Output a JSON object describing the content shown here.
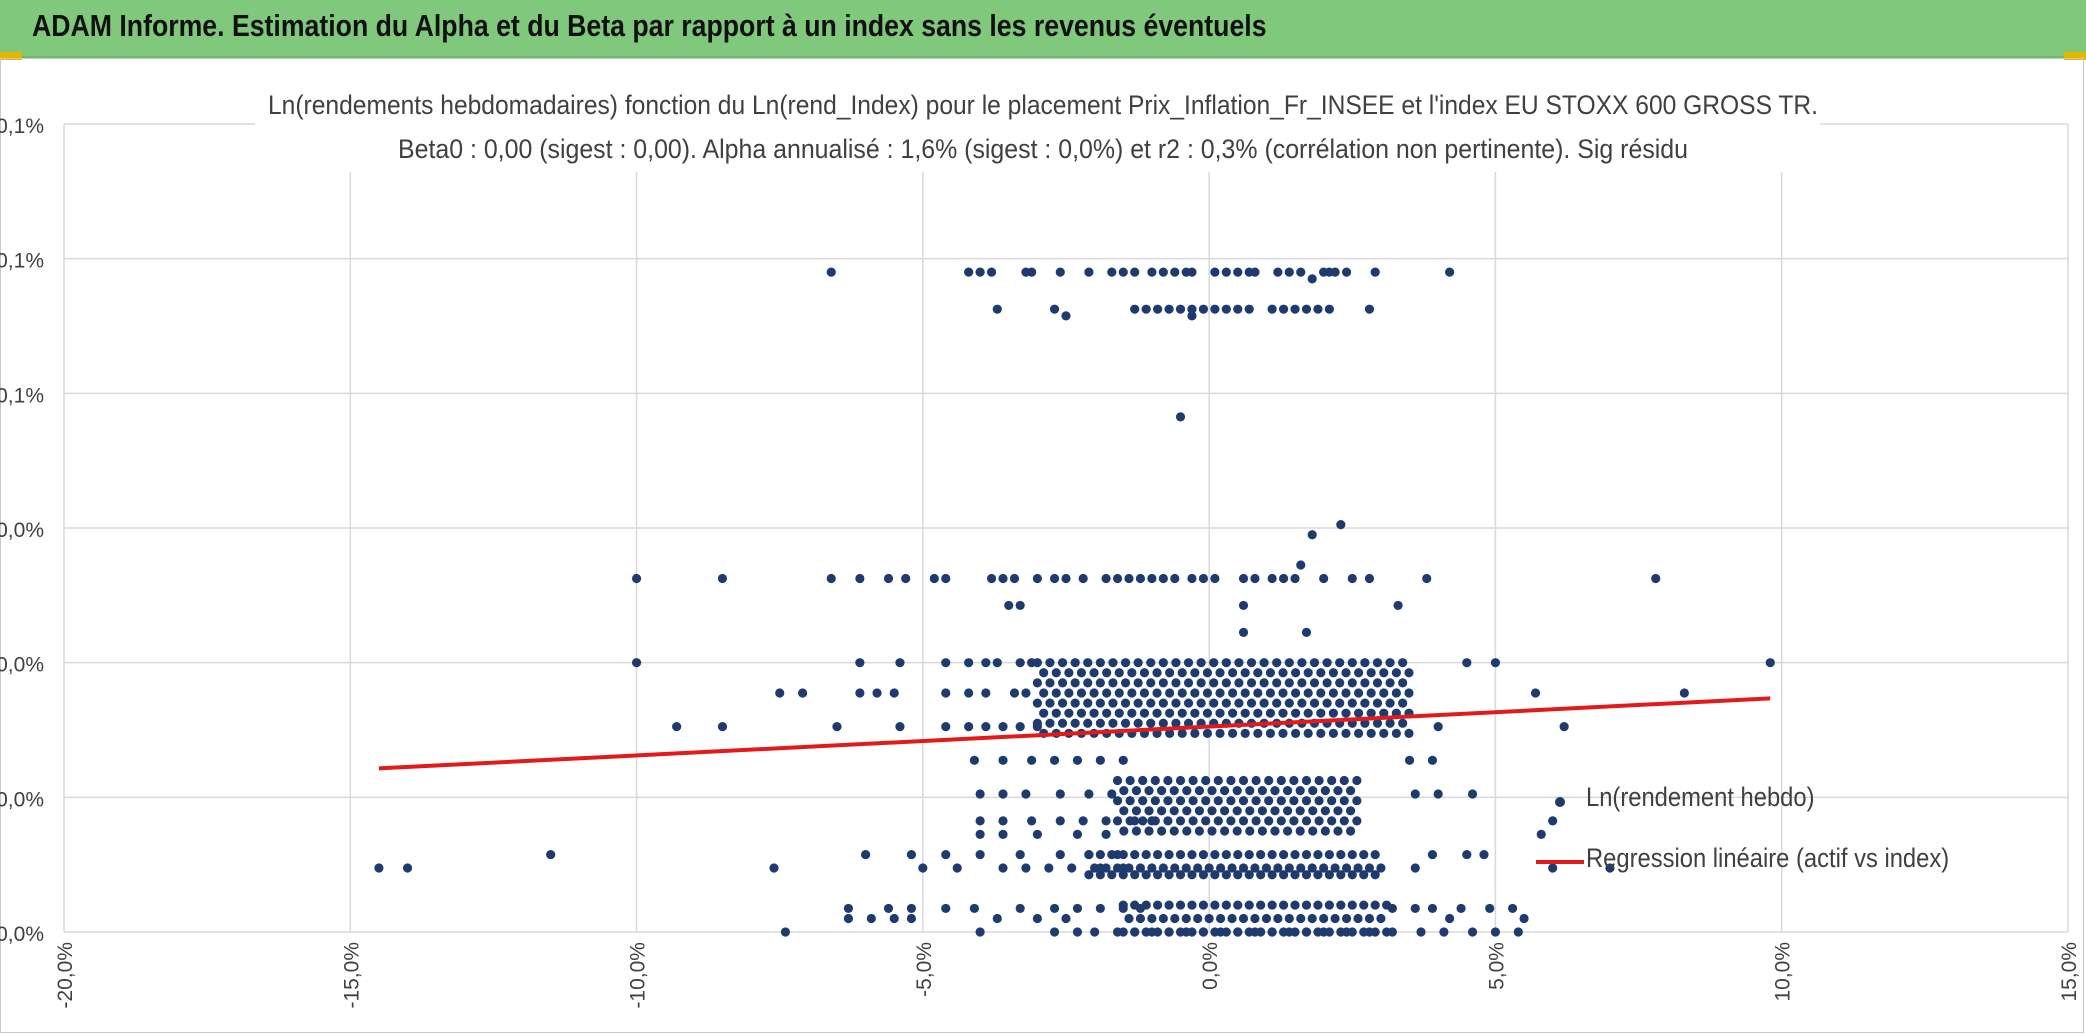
{
  "header": {
    "title": "ADAM Informe. Estimation du Alpha et du Beta par rapport à un index sans les revenus éventuels"
  },
  "colors": {
    "banner": "#80c97c",
    "points": "#1f3b6e",
    "regression": "#e31a1c",
    "grid": "#d9d9d9",
    "text": "#404040"
  },
  "chart_data": {
    "type": "scatter",
    "title_lines": [
      "Ln(rendements hebdomadaires) fonction du Ln(rend_Index) pour le placement Prix_Inflation_Fr_INSEE et l'index EU STOXX 600 GROSS TR.",
      "Beta0 : 0,00 (sigest : 0,00). Alpha annualisé : 1,6% (sigest : 0,0%) et r2 : 0,3% (corrélation non pertinente). Sig résidu"
    ],
    "xlabel": "Ln(rend_Index)",
    "ylabel": "Ln(rendement hebdo)",
    "xlim": [
      -20.0,
      15.0
    ],
    "ylim": [
      0.0,
      0.12
    ],
    "x_ticks": [
      -20,
      -15,
      -10,
      -5,
      0,
      5,
      10,
      15
    ],
    "x_tick_labels": [
      "-20,0%",
      "-15,0%",
      "-10,0%",
      "-5,0%",
      "0,0%",
      "5,0%",
      "10,0%",
      "15,0%"
    ],
    "y_ticks": [
      0.0,
      0.02,
      0.04,
      0.06,
      0.08,
      0.1,
      0.12
    ],
    "y_tick_labels": [
      "0,0%",
      "0,0%",
      "0,0%",
      "0,0%",
      "0,1%",
      "0,1%",
      "0,1%"
    ],
    "grid": true,
    "legend": {
      "position": "right",
      "entries": [
        "Ln(rendement hebdo)",
        "Regression linéaire (actif vs index)"
      ]
    },
    "regression": {
      "x": [
        -14.5,
        9.8
      ],
      "y": [
        0.0243,
        0.0347
      ]
    },
    "series": [
      {
        "name": "Ln(rendement hebdo)",
        "bands": [
          {
            "y": 0.118,
            "x": [
              0.3
            ]
          },
          {
            "y": 0.098,
            "x": [
              -6.6,
              -4.2,
              -4.0,
              -3.8,
              -3.2,
              -3.1,
              -2.6,
              -2.1,
              -1.7,
              -1.5,
              -1.3,
              -1.0,
              -0.8,
              -0.6,
              -0.4,
              -0.3,
              0.1,
              0.3,
              0.5,
              0.7,
              0.8,
              1.2,
              1.4,
              1.6,
              2.0,
              2.1,
              2.2,
              2.4,
              2.9,
              4.2
            ]
          },
          {
            "y": 0.0925,
            "x": [
              -3.7,
              -2.7,
              -1.3,
              -1.1,
              -0.9,
              -0.7,
              -0.5,
              -0.3,
              -0.1,
              0.1,
              0.3,
              0.5,
              0.7,
              1.1,
              1.3,
              1.5,
              1.7,
              1.9,
              2.1,
              2.8
            ]
          },
          {
            "y": 0.097,
            "x": [
              1.8
            ]
          },
          {
            "y": 0.0915,
            "x": [
              -2.5
            ]
          },
          {
            "y": 0.0915,
            "x": [
              -0.3
            ]
          },
          {
            "y": 0.0765,
            "x": [
              -0.5
            ]
          },
          {
            "y": 0.0605,
            "x": [
              2.3
            ]
          },
          {
            "y": 0.059,
            "x": [
              1.8
            ]
          },
          {
            "y": 0.0545,
            "x": [
              1.6
            ]
          },
          {
            "y": 0.0525,
            "x": [
              -10.0,
              -8.5,
              -6.6,
              -6.1,
              -5.6,
              -5.3,
              -4.8,
              -4.6,
              -3.8,
              -3.6,
              -3.4,
              -3.0,
              -2.7,
              -2.5,
              -2.2,
              -1.8,
              -1.6,
              -1.4,
              -1.2,
              -1.0,
              -0.8,
              -0.6,
              -0.3,
              -0.1,
              0.1,
              0.6,
              0.8,
              1.1,
              1.3,
              1.5,
              2.0,
              2.5,
              2.8,
              3.8,
              7.8
            ]
          },
          {
            "y": 0.0485,
            "x": [
              -3.5,
              -3.3,
              0.6,
              3.3
            ]
          },
          {
            "y": 0.0445,
            "x": [
              0.6,
              1.7
            ]
          },
          {
            "y": 0.04,
            "x": [
              -10.0,
              4.5,
              5.0,
              9.8,
              -6.1,
              -5.4,
              -4.6,
              -4.2,
              -3.9,
              -3.7,
              -3.3,
              -3.1
            ]
          },
          {
            "y": 0.0355,
            "x": [
              -7.5,
              -7.1,
              -6.1,
              -5.8,
              -5.5,
              -4.6,
              -4.2,
              -3.9,
              -3.4,
              -3.2,
              5.7,
              8.3
            ]
          },
          {
            "y": 0.0305,
            "x": [
              -9.3,
              -8.5,
              -6.5,
              -5.4,
              -4.6,
              -4.2,
              -3.9,
              -3.6,
              -3.3,
              -3.0,
              4.0,
              6.2
            ]
          },
          {
            "y": 0.0255,
            "x": [
              -4.1,
              -3.6,
              -3.1,
              -2.7,
              -2.3,
              -1.9,
              -1.5,
              3.5,
              3.9
            ]
          },
          {
            "y": 0.0205,
            "x": [
              -4.0,
              -3.6,
              -3.2,
              -2.6,
              -2.1,
              -1.7,
              3.6,
              4.0,
              4.6
            ]
          },
          {
            "y": 0.0165,
            "x": [
              -4.0,
              -3.6,
              -3.1,
              -2.6,
              -2.2,
              -1.8,
              -1.3,
              -1.0,
              6.0
            ]
          },
          {
            "y": 0.0145,
            "x": [
              -4.0,
              -3.6,
              -3.0,
              -2.3,
              -1.8,
              5.8
            ]
          },
          {
            "y": 0.0115,
            "x": [
              -11.5,
              -6.0,
              -5.2,
              -4.6,
              -4.0,
              -3.3,
              -2.6,
              -2.1,
              -1.6,
              3.9,
              4.5,
              4.8
            ]
          },
          {
            "y": 0.0095,
            "x": [
              -14.5,
              -14.0,
              -7.6,
              -5.0,
              -4.4,
              -3.6,
              -3.2,
              -2.8,
              -2.4,
              -1.9,
              -1.5,
              3.0,
              3.6,
              6.0,
              7.0
            ]
          },
          {
            "y": 0.0035,
            "x": [
              -6.3,
              -5.6,
              -5.2,
              -4.6,
              -4.1,
              -3.3,
              -2.7,
              -2.3,
              -1.9,
              -1.5,
              -1.2,
              3.2,
              3.6,
              3.9,
              4.4,
              4.9,
              5.3
            ]
          },
          {
            "y": 0.002,
            "x": [
              -6.3,
              -5.9,
              -5.5,
              -5.2,
              -3.7,
              -3.0,
              -2.5,
              4.2,
              5.5
            ]
          },
          {
            "y": 0.0,
            "x": [
              -7.4,
              -4.0,
              -2.7,
              -2.3,
              -2.0,
              -1.6,
              -1.3,
              -1.0,
              -0.7,
              -0.4,
              -0.1,
              0.2,
              0.5,
              0.8,
              1.1,
              1.4,
              1.7,
              2.0,
              2.4,
              2.8,
              3.2,
              3.7,
              4.1,
              4.6,
              5.0,
              5.4
            ]
          }
        ],
        "dense_clusters": [
          {
            "y_values": [
              0.04,
              0.0385,
              0.037,
              0.0355,
              0.034,
              0.0325,
              0.031,
              0.0295
            ],
            "x_range": [
              -3.0,
              3.5
            ],
            "step": 0.22
          },
          {
            "y_values": [
              0.0225,
              0.021,
              0.0195,
              0.018,
              0.0165,
              0.015
            ],
            "x_range": [
              -1.6,
              2.6
            ],
            "step": 0.22
          },
          {
            "y_values": [
              0.0115,
              0.0095,
              0.0085
            ],
            "x_range": [
              -2.1,
              3.0
            ],
            "step": 0.2
          },
          {
            "y_values": [
              0.004,
              0.002,
              0.0
            ],
            "x_range": [
              -1.5,
              3.2
            ],
            "step": 0.2
          }
        ]
      }
    ]
  }
}
